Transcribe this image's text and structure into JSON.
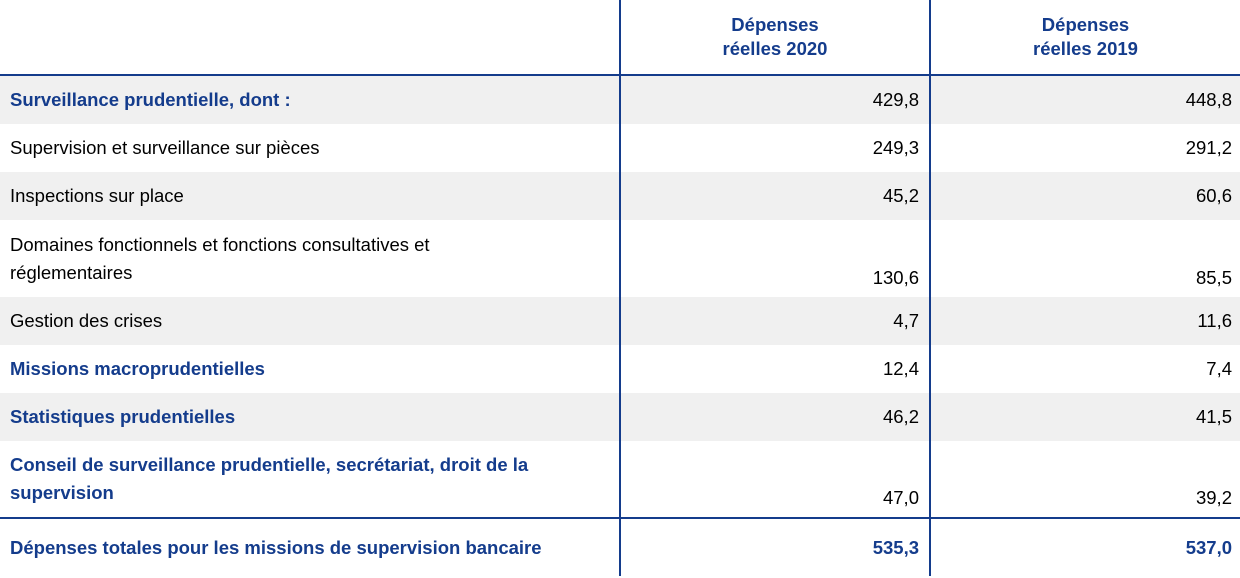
{
  "header": {
    "columns": [
      "Dépenses réelles 2020",
      "Dépenses réelles 2019"
    ]
  },
  "table": {
    "rows": [
      [
        "Surveillance prudentielle, dont :",
        "429,8",
        "448,8"
      ],
      [
        "Supervision et surveillance sur pièces",
        "249,3",
        "291,2"
      ],
      [
        "Inspections sur place",
        "45,2",
        "60,6"
      ],
      [
        "Domaines fonctionnels et fonctions consultatives et réglementaires",
        "130,6",
        "85,5"
      ],
      [
        "Gestion des crises",
        "4,7",
        "11,6"
      ],
      [
        "Missions macroprudentielles",
        "12,4",
        "7,4"
      ],
      [
        "Statistiques prudentielles",
        "46,2",
        "41,5"
      ],
      [
        "Conseil de surveillance prudentielle, secrétariat, droit de la supervision",
        "47,0",
        "39,2"
      ]
    ],
    "total": [
      "Dépenses totales pour les missions de supervision bancaire",
      "535,3",
      "537,0"
    ]
  }
}
